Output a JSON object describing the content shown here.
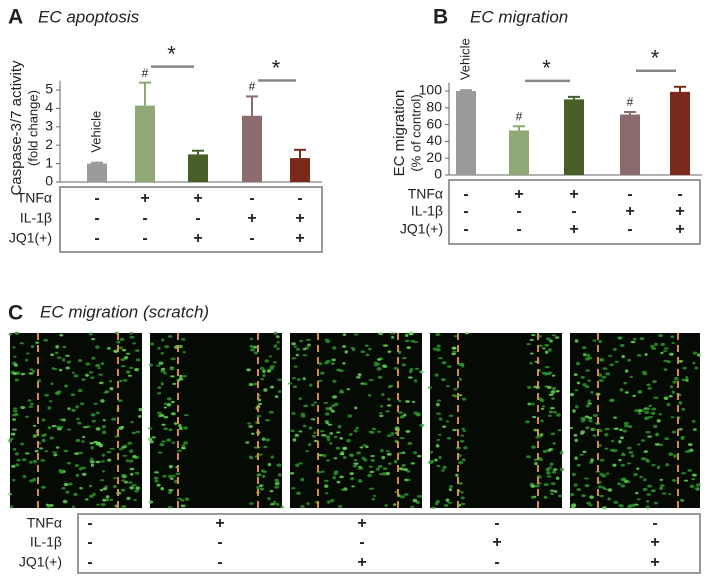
{
  "chart_data": [
    {
      "type": "bar",
      "panel": "A",
      "title": "EC apoptosis",
      "ylabel": [
        "Caspase-3/7 activity",
        "(fold change)"
      ],
      "categories": [
        null,
        null,
        null,
        null,
        null
      ],
      "values": [
        1.0,
        4.15,
        1.5,
        3.6,
        1.3
      ],
      "errors": [
        0.05,
        1.25,
        0.2,
        1.05,
        0.45
      ],
      "colors": [
        "#9a9a9a",
        "#8fa876",
        "#4a5e2a",
        "#8b6b6b",
        "#7a2a1a"
      ],
      "ylim": [
        0,
        5.5
      ],
      "yticks": [
        0,
        1,
        2,
        3,
        4,
        5
      ],
      "bar_labels": [
        "Vehicle",
        null,
        null,
        null,
        null
      ],
      "markers": [
        null,
        "#",
        null,
        "#",
        null
      ],
      "significance": [
        null,
        null,
        "*",
        null,
        "*"
      ],
      "treatments": [
        {
          "name": "TNFα",
          "values": [
            "-",
            "+",
            "+",
            "-",
            "-"
          ]
        },
        {
          "name": "IL-1β",
          "values": [
            "-",
            "-",
            "-",
            "+",
            "+"
          ]
        },
        {
          "name": "JQ1(+)",
          "values": [
            "-",
            "-",
            "+",
            "-",
            "+"
          ]
        }
      ]
    },
    {
      "type": "bar",
      "panel": "B",
      "title": "EC migration",
      "ylabel": [
        "EC migration",
        "(% of control)"
      ],
      "categories": [
        null,
        null,
        null,
        null,
        null
      ],
      "values": [
        100,
        53,
        90,
        72,
        99
      ],
      "errors": [
        1,
        5,
        3,
        3,
        6
      ],
      "colors": [
        "#9a9a9a",
        "#8fa876",
        "#4a5e2a",
        "#8b6b6b",
        "#7a2a1a"
      ],
      "ylim": [
        0,
        110
      ],
      "yticks": [
        0,
        20,
        40,
        60,
        80,
        100
      ],
      "bar_labels": [
        "Vehicle",
        null,
        null,
        null,
        null
      ],
      "markers": [
        null,
        "#",
        null,
        "#",
        null
      ],
      "significance": [
        null,
        null,
        "*",
        null,
        "*"
      ],
      "treatments": [
        {
          "name": "TNFα",
          "values": [
            "-",
            "+",
            "+",
            "-",
            "-"
          ]
        },
        {
          "name": "IL-1β",
          "values": [
            "-",
            "-",
            "-",
            "+",
            "+"
          ]
        },
        {
          "name": "JQ1(+)",
          "values": [
            "-",
            "-",
            "+",
            "-",
            "+"
          ]
        }
      ]
    }
  ],
  "panel_c": {
    "panel": "C",
    "title": "EC migration (scratch)",
    "treatments": [
      {
        "name": "TNFα",
        "values": [
          "-",
          "+",
          "+",
          "-",
          "-"
        ]
      },
      {
        "name": "IL-1β",
        "values": [
          "-",
          "-",
          "-",
          "+",
          "+"
        ]
      },
      {
        "name": "JQ1(+)",
        "values": [
          "-",
          "-",
          "+",
          "-",
          "+"
        ]
      }
    ]
  }
}
